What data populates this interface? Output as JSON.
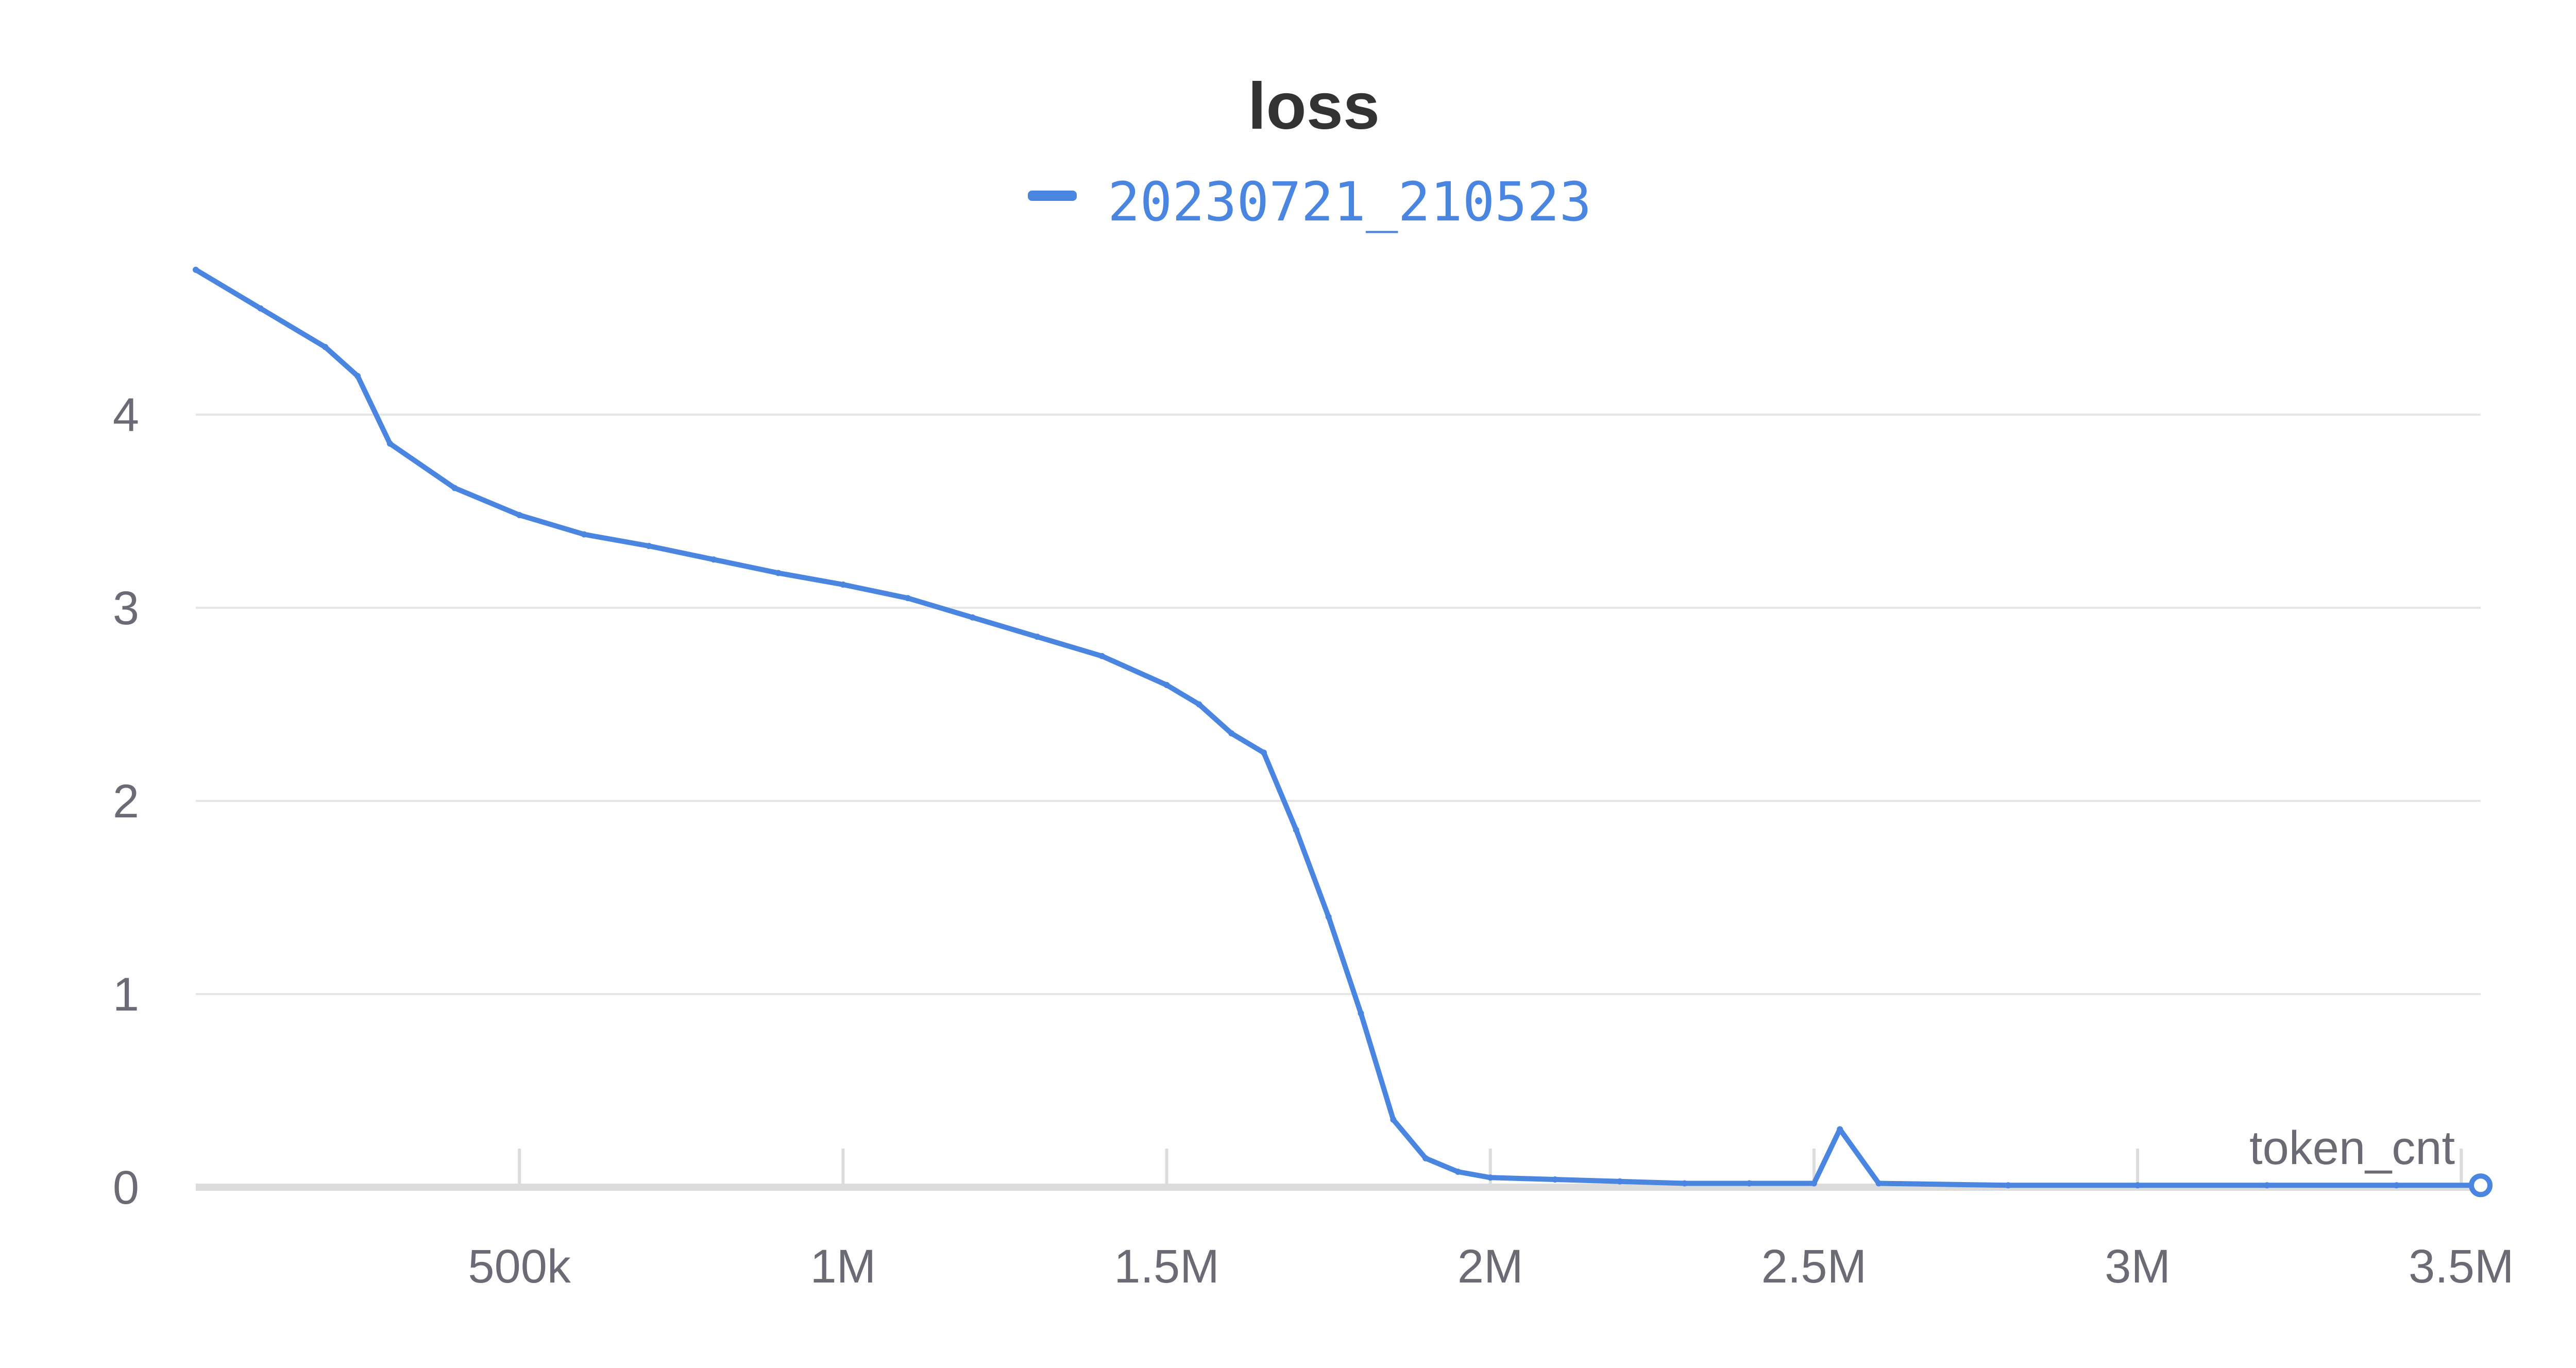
{
  "chart_data": {
    "type": "line",
    "title": "loss",
    "xlabel": "token_cnt",
    "ylabel": "",
    "x_ticks": [
      "500k",
      "1M",
      "1.5M",
      "2M",
      "2.5M",
      "3M",
      "3.5M"
    ],
    "y_ticks": [
      "0",
      "1",
      "2",
      "3",
      "4"
    ],
    "xlim": [
      0,
      3530000
    ],
    "ylim": [
      0,
      4.8
    ],
    "grid": true,
    "legend": "top-center",
    "series": [
      {
        "name": "20230721_210523",
        "color": "#4a85df",
        "x": [
          0,
          100000,
          200000,
          250000,
          300000,
          400000,
          500000,
          600000,
          700000,
          800000,
          900000,
          1000000,
          1100000,
          1200000,
          1300000,
          1400000,
          1500000,
          1550000,
          1600000,
          1650000,
          1700000,
          1750000,
          1800000,
          1850000,
          1900000,
          1950000,
          2000000,
          2100000,
          2200000,
          2300000,
          2400000,
          2500000,
          2540000,
          2600000,
          2800000,
          3000000,
          3200000,
          3400000,
          3530000
        ],
        "y": [
          4.75,
          4.55,
          4.35,
          4.2,
          3.85,
          3.62,
          3.48,
          3.38,
          3.32,
          3.25,
          3.18,
          3.12,
          3.05,
          2.95,
          2.85,
          2.75,
          2.6,
          2.5,
          2.35,
          2.25,
          1.85,
          1.4,
          0.9,
          0.35,
          0.15,
          0.08,
          0.05,
          0.04,
          0.03,
          0.02,
          0.02,
          0.02,
          0.3,
          0.02,
          0.01,
          0.01,
          0.01,
          0.01,
          0.01
        ]
      }
    ]
  }
}
